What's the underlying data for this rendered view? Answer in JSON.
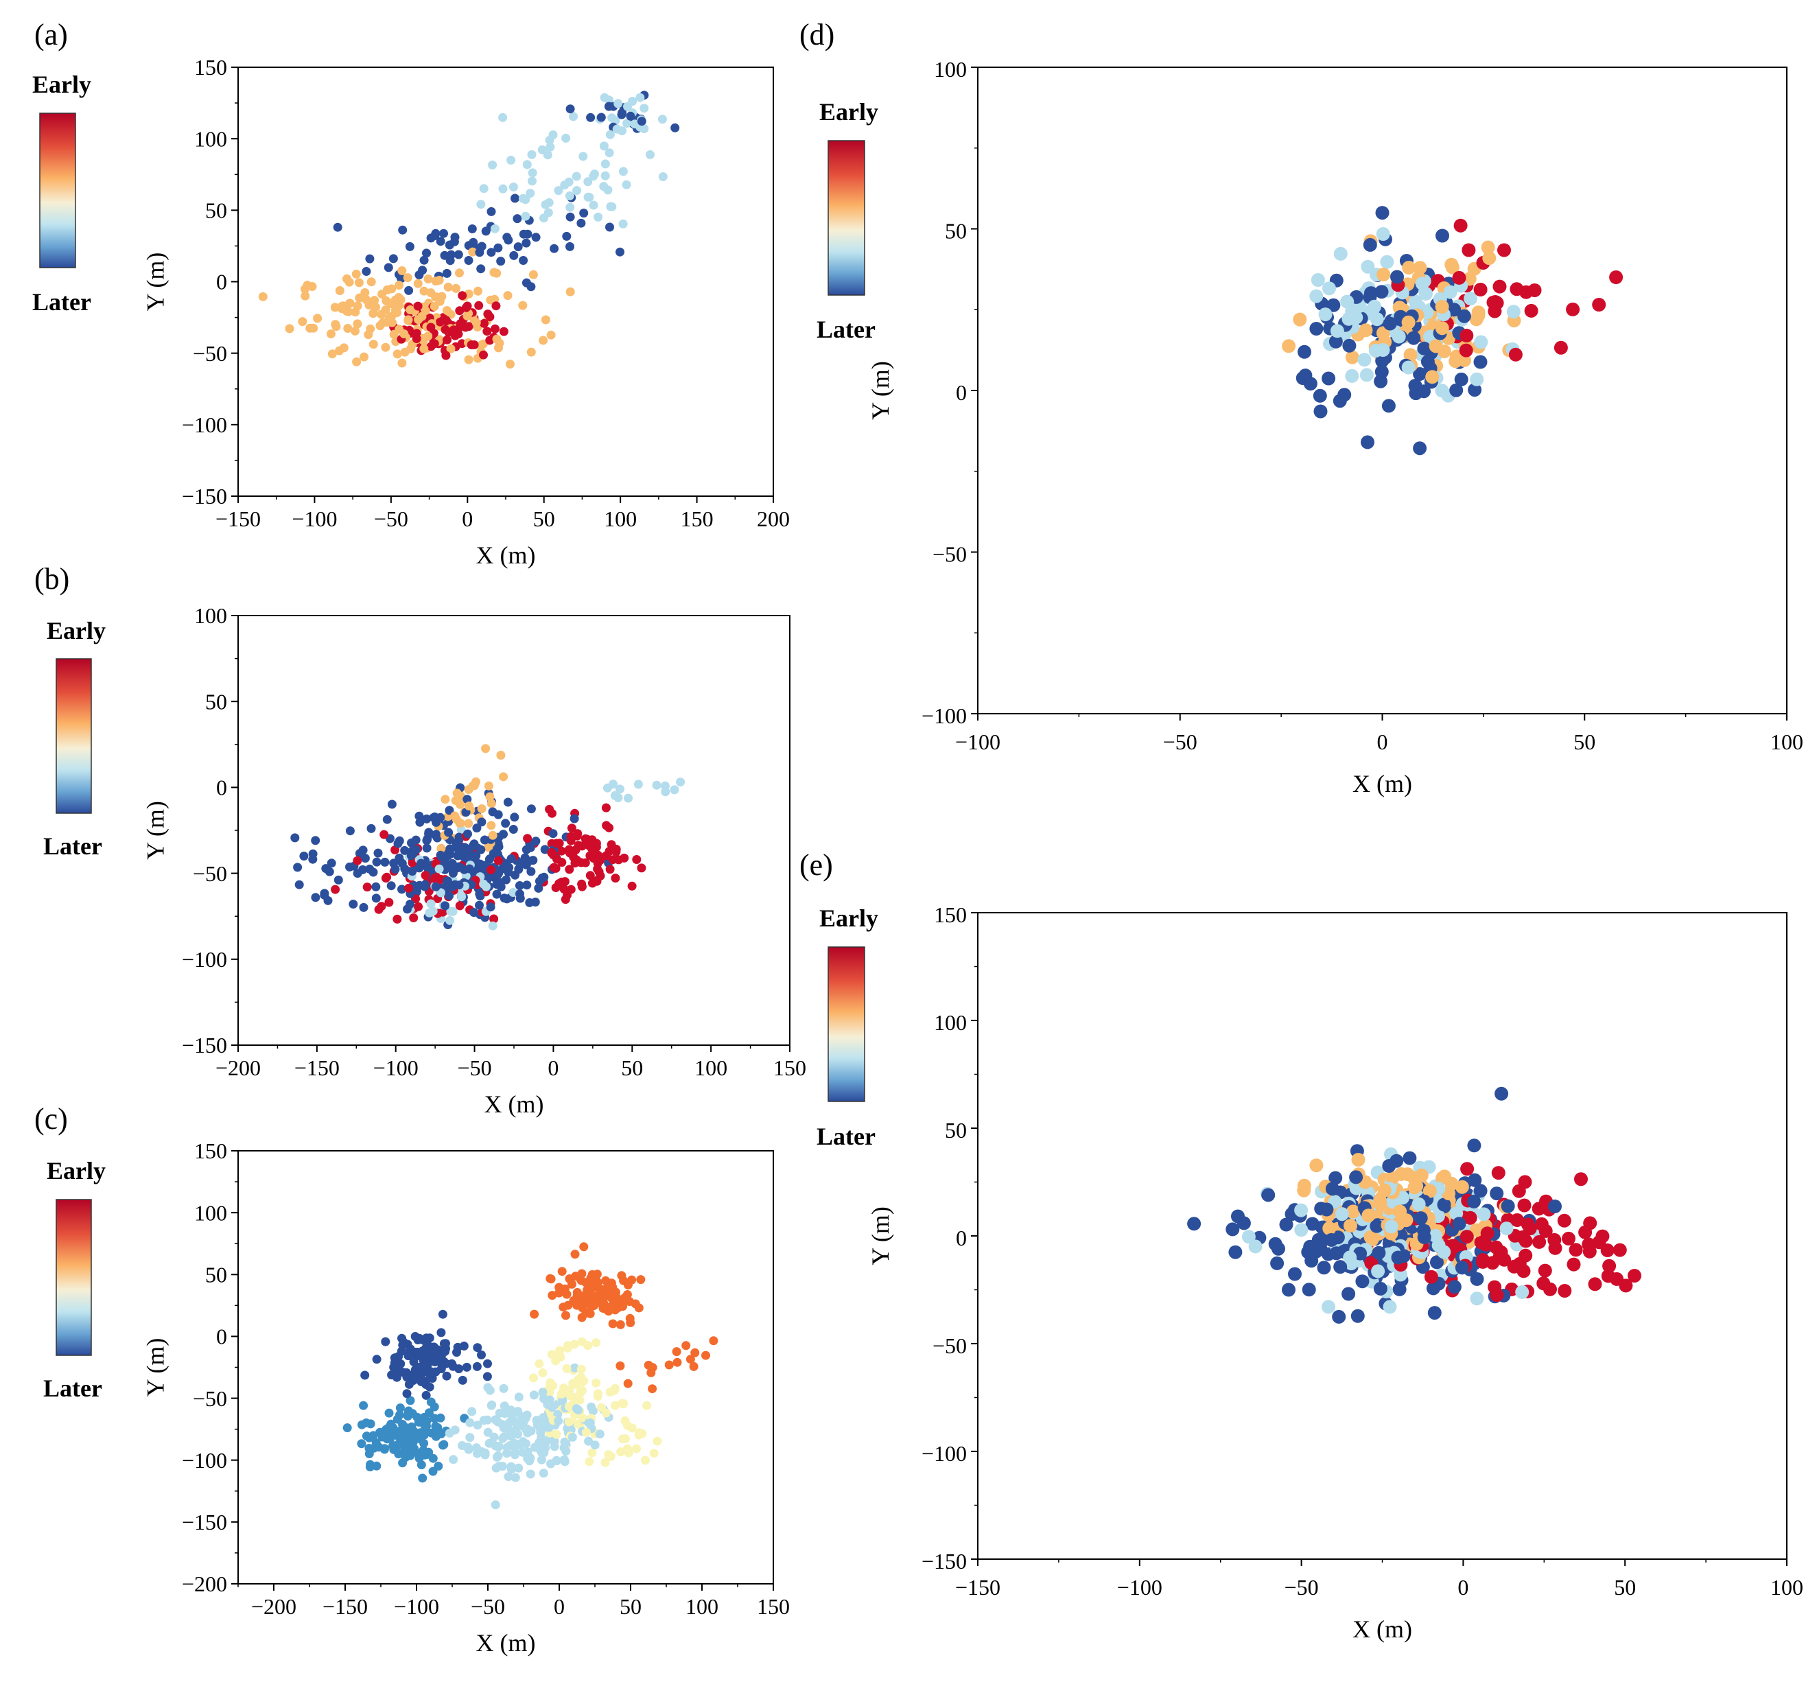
{
  "figure": {
    "colorbar": {
      "top_label": "Early",
      "bottom_label": "Later"
    }
  },
  "chart_data": [
    {
      "panel_label": "(a)",
      "type": "scatter",
      "xlabel": "X (m)",
      "ylabel": "Y (m)",
      "xlim": [
        -150,
        200
      ],
      "ylim": [
        -150,
        150
      ],
      "xticks": [
        -150,
        -100,
        -50,
        0,
        50,
        100,
        150,
        200
      ],
      "yticks": [
        -150,
        -100,
        -50,
        0,
        50,
        100,
        150
      ],
      "colorbar": {
        "top": "Early",
        "bottom": "Later"
      },
      "clusters": [
        {
          "center": [
            -35,
            -25
          ],
          "spread": [
            70,
            28
          ],
          "color": "orange",
          "n": 170
        },
        {
          "center": [
            -15,
            -30
          ],
          "spread": [
            30,
            20
          ],
          "color": "red",
          "n": 70
        },
        {
          "center": [
            -10,
            20
          ],
          "spread": [
            50,
            20
          ],
          "color": "darkblue",
          "n": 45
        },
        {
          "center": [
            60,
            70
          ],
          "spread": [
            55,
            30
          ],
          "color": "lightblue",
          "n": 55
        },
        {
          "center": [
            100,
            115
          ],
          "spread": [
            25,
            12
          ],
          "color": "darkblue",
          "n": 18
        },
        {
          "center": [
            110,
            115
          ],
          "spread": [
            30,
            15
          ],
          "color": "lightblue",
          "n": 20
        },
        {
          "center": [
            40,
            40
          ],
          "spread": [
            40,
            30
          ],
          "color": "darkblue",
          "n": 20
        }
      ]
    },
    {
      "panel_label": "(b)",
      "type": "scatter",
      "xlabel": "X (m)",
      "ylabel": "Y (m)",
      "xlim": [
        -200,
        150
      ],
      "ylim": [
        -150,
        100
      ],
      "xticks": [
        -200,
        -150,
        -100,
        -50,
        0,
        50,
        100,
        150
      ],
      "yticks": [
        -150,
        -100,
        -50,
        0,
        50,
        100
      ],
      "colorbar": {
        "top": "Early",
        "bottom": "Later"
      },
      "clusters": [
        {
          "center": [
            -60,
            -45
          ],
          "spread": [
            55,
            30
          ],
          "color": "darkblue",
          "n": 260
        },
        {
          "center": [
            -80,
            -55
          ],
          "spread": [
            40,
            20
          ],
          "color": "red",
          "n": 60
        },
        {
          "center": [
            20,
            -40
          ],
          "spread": [
            25,
            18
          ],
          "color": "red",
          "n": 90
        },
        {
          "center": [
            -55,
            -10
          ],
          "spread": [
            25,
            25
          ],
          "color": "orange",
          "n": 35
        },
        {
          "center": [
            -60,
            -60
          ],
          "spread": [
            35,
            25
          ],
          "color": "lightblue",
          "n": 35
        },
        {
          "center": [
            60,
            0
          ],
          "spread": [
            35,
            10
          ],
          "color": "lightblue",
          "n": 12
        },
        {
          "center": [
            -150,
            -50
          ],
          "spread": [
            15,
            25
          ],
          "color": "darkblue",
          "n": 15
        }
      ]
    },
    {
      "panel_label": "(c)",
      "type": "scatter",
      "xlabel": "X (m)",
      "ylabel": "Y (m)",
      "xlim": [
        -225,
        150
      ],
      "ylim": [
        -200,
        150
      ],
      "xticks": [
        -200,
        -150,
        -100,
        -50,
        0,
        50,
        100,
        150
      ],
      "yticks": [
        -200,
        -150,
        -100,
        -50,
        0,
        50,
        100,
        150
      ],
      "colorbar": {
        "top": "Early",
        "bottom": "Later"
      },
      "clusters": [
        {
          "center": [
            -95,
            -20
          ],
          "spread": [
            28,
            18
          ],
          "color": "darkblue",
          "n": 110
        },
        {
          "center": [
            -105,
            -80
          ],
          "spread": [
            28,
            25
          ],
          "color": "steelblue",
          "n": 120
        },
        {
          "center": [
            -20,
            -80
          ],
          "spread": [
            40,
            30
          ],
          "color": "lightblue",
          "n": 160
        },
        {
          "center": [
            5,
            -45
          ],
          "spread": [
            30,
            40
          ],
          "color": "paleyellow",
          "n": 70
        },
        {
          "center": [
            25,
            35
          ],
          "spread": [
            25,
            18
          ],
          "color": "orangered",
          "n": 120
        },
        {
          "center": [
            80,
            -20
          ],
          "spread": [
            30,
            20
          ],
          "color": "orangered",
          "n": 15
        },
        {
          "center": [
            50,
            -80
          ],
          "spread": [
            30,
            25
          ],
          "color": "paleyellow",
          "n": 25
        }
      ]
    },
    {
      "panel_label": "(d)",
      "type": "scatter",
      "xlabel": "X (m)",
      "ylabel": "Y (m)",
      "xlim": [
        -100,
        100
      ],
      "ylim": [
        -100,
        100
      ],
      "xticks": [
        -100,
        -50,
        0,
        50,
        100
      ],
      "yticks": [
        -100,
        -50,
        0,
        50,
        100
      ],
      "colorbar": {
        "top": "Early",
        "bottom": "Later"
      },
      "clusters": [
        {
          "center": [
            5,
            15
          ],
          "spread": [
            22,
            22
          ],
          "color": "darkblue",
          "n": 85
        },
        {
          "center": [
            5,
            20
          ],
          "spread": [
            22,
            20
          ],
          "color": "lightblue",
          "n": 80
        },
        {
          "center": [
            10,
            25
          ],
          "spread": [
            22,
            18
          ],
          "color": "orange",
          "n": 60
        },
        {
          "center": [
            25,
            30
          ],
          "spread": [
            20,
            15
          ],
          "color": "red",
          "n": 30
        }
      ]
    },
    {
      "panel_label": "(e)",
      "type": "scatter",
      "xlabel": "X (m)",
      "ylabel": "Y (m)",
      "xlim": [
        -150,
        100
      ],
      "ylim": [
        -150,
        150
      ],
      "xticks": [
        -150,
        -100,
        -50,
        0,
        50,
        100
      ],
      "yticks": [
        -150,
        -100,
        -50,
        0,
        50,
        100,
        150
      ],
      "colorbar": {
        "top": "Early",
        "bottom": "Later"
      },
      "clusters": [
        {
          "center": [
            -25,
            0
          ],
          "spread": [
            35,
            28
          ],
          "color": "darkblue",
          "n": 190
        },
        {
          "center": [
            -20,
            5
          ],
          "spread": [
            30,
            25
          ],
          "color": "lightblue",
          "n": 110
        },
        {
          "center": [
            -20,
            10
          ],
          "spread": [
            22,
            18
          ],
          "color": "orange",
          "n": 130
        },
        {
          "center": [
            5,
            0
          ],
          "spread": [
            28,
            22
          ],
          "color": "red",
          "n": 80
        },
        {
          "center": [
            40,
            -15
          ],
          "spread": [
            12,
            15
          ],
          "color": "red",
          "n": 15
        }
      ]
    }
  ],
  "colors": {
    "darkblue": "#2c4f9b",
    "steelblue": "#3a8cc4",
    "lightblue": "#b3dcec",
    "paleyellow": "#f9f4b4",
    "orange": "#f9bb6d",
    "orangered": "#f26b2d",
    "red": "#cf0d2a"
  }
}
